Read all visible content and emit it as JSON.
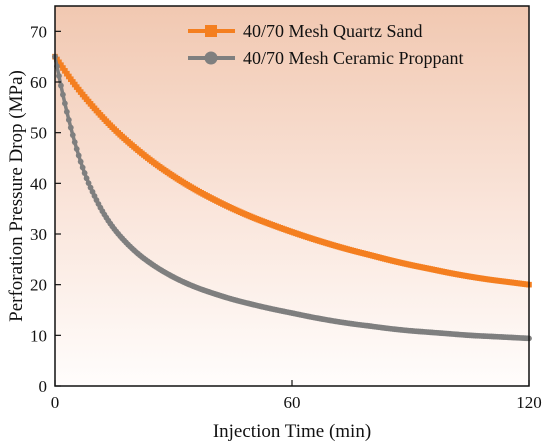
{
  "chart_data": {
    "type": "line",
    "title": "",
    "xlabel": "Injection Time (min)",
    "ylabel": "Perforation Pressure Drop (MPa)",
    "xlim": [
      0,
      120
    ],
    "ylim": [
      0,
      75
    ],
    "x_ticks": [
      0,
      60,
      120
    ],
    "y_ticks": [
      0,
      10,
      20,
      30,
      40,
      50,
      60,
      70
    ],
    "grid": false,
    "legend_position": "top-right",
    "background": "vertical gradient from light peach at top to white at bottom",
    "series": [
      {
        "name": "40/70 Mesh Quartz Sand",
        "color": "#F47F20",
        "marker": "square",
        "x": [
          0,
          5,
          10,
          15,
          20,
          25,
          30,
          35,
          40,
          45,
          50,
          55,
          60,
          65,
          70,
          75,
          80,
          85,
          90,
          95,
          100,
          105,
          110,
          115,
          120
        ],
        "y": [
          65,
          59.5,
          54.8,
          50.7,
          47.2,
          44.1,
          41.4,
          39.0,
          36.9,
          35.0,
          33.3,
          31.8,
          30.4,
          29.1,
          27.9,
          26.8,
          25.8,
          24.8,
          23.9,
          23.1,
          22.3,
          21.6,
          21.0,
          20.5,
          20.0
        ]
      },
      {
        "name": "40/70 Mesh Ceramic Proppant",
        "color": "#7F7F7F",
        "marker": "circle",
        "x": [
          0,
          2,
          4,
          6,
          8,
          10,
          12,
          15,
          20,
          25,
          30,
          35,
          40,
          45,
          50,
          55,
          60,
          65,
          70,
          75,
          80,
          85,
          90,
          95,
          100,
          105,
          110,
          115,
          120
        ],
        "y": [
          65,
          57.5,
          51.0,
          45.5,
          41.0,
          37.5,
          34.5,
          31.0,
          26.8,
          23.8,
          21.5,
          19.7,
          18.3,
          17.1,
          16.1,
          15.2,
          14.4,
          13.6,
          12.9,
          12.3,
          11.8,
          11.3,
          10.9,
          10.6,
          10.3,
          10.0,
          9.8,
          9.6,
          9.4
        ]
      }
    ]
  }
}
